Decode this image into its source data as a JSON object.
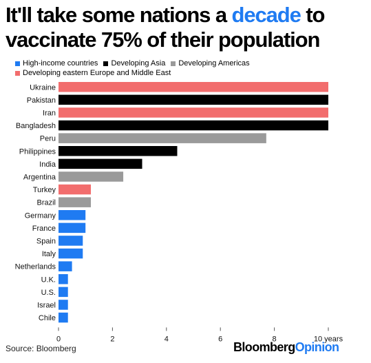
{
  "title": {
    "line1_pre": "It'll take some nations a ",
    "line1_highlight": "decade",
    "line1_post": " to",
    "line2": "vaccinate 75% of their population"
  },
  "colors": {
    "high_income": "#1f7bf2",
    "developing_asia": "#000000",
    "developing_americas": "#9a9a9a",
    "developing_europe_me": "#f26d6d",
    "highlight": "#1f7bf2"
  },
  "legend": [
    {
      "label": "High-income countries",
      "color": "#1f7bf2"
    },
    {
      "label": "Developing Asia",
      "color": "#000000"
    },
    {
      "label": "Developing Americas",
      "color": "#9a9a9a"
    },
    {
      "label": "Developing eastern Europe and Middle East",
      "color": "#f26d6d"
    }
  ],
  "chart_data": {
    "type": "bar",
    "orientation": "horizontal",
    "title": "It'll take some nations a decade to vaccinate 75% of their population",
    "categories": [
      "Ukraine",
      "Pakistan",
      "Iran",
      "Bangladesh",
      "Peru",
      "Philippines",
      "India",
      "Argentina",
      "Turkey",
      "Brazil",
      "Germany",
      "France",
      "Spain",
      "Italy",
      "Netherlands",
      "U.K.",
      "U.S.",
      "Israel",
      "Chile"
    ],
    "values": [
      10,
      10,
      10,
      10,
      7.7,
      4.4,
      3.1,
      2.4,
      1.2,
      1.2,
      1.0,
      1.0,
      0.9,
      0.9,
      0.5,
      0.35,
      0.35,
      0.35,
      0.35
    ],
    "groups": [
      "Developing eastern Europe and Middle East",
      "Developing Asia",
      "Developing eastern Europe and Middle East",
      "Developing Asia",
      "Developing Americas",
      "Developing Asia",
      "Developing Asia",
      "Developing Americas",
      "Developing eastern Europe and Middle East",
      "Developing Americas",
      "High-income countries",
      "High-income countries",
      "High-income countries",
      "High-income countries",
      "High-income countries",
      "High-income countries",
      "High-income countries",
      "High-income countries",
      "High-income countries"
    ],
    "xlim": [
      0,
      10
    ],
    "xticks": [
      0,
      2,
      4,
      6,
      8,
      10
    ],
    "xtick_labels": [
      "0",
      "2",
      "4",
      "6",
      "8",
      "10 years"
    ],
    "grid": false,
    "legend_position": "top-left"
  },
  "source": "Source: Bloomberg",
  "brand": {
    "part1": "Bloomberg",
    "part2": "Opinion"
  }
}
